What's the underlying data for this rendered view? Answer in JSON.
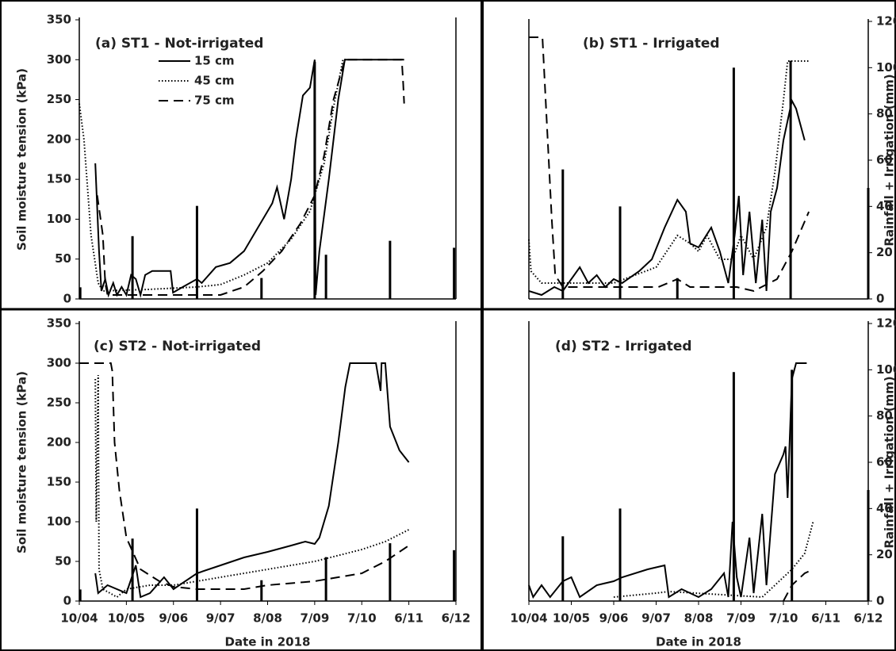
{
  "chart_data": [
    {
      "type": "line",
      "title": "(a) ST1 - Not-irrigated",
      "ylabel": "Soil moisture tension (kPa)",
      "xlim": [
        0,
        8
      ],
      "ylim": [
        0,
        350
      ],
      "yticks": [
        0,
        50,
        100,
        150,
        200,
        250,
        300,
        350
      ],
      "legend": "upper-left",
      "series": [
        {
          "name": "15 cm",
          "color": "#000000",
          "style": "solid",
          "x": [
            0.34,
            0.42,
            0.47,
            0.55,
            0.62,
            0.72,
            0.8,
            0.9,
            1.0,
            1.1,
            1.2,
            1.3,
            1.4,
            1.55,
            1.94,
            1.99,
            2.2,
            2.5,
            2.6,
            2.9,
            3.2,
            3.5,
            3.8,
            4.0,
            4.1,
            4.2,
            4.35,
            4.5,
            4.6,
            4.75,
            4.9,
            5.0,
            5.02,
            5.1,
            5.3,
            5.5,
            5.64,
            6.9
          ],
          "values": [
            170,
            60,
            10,
            25,
            5,
            20,
            5,
            15,
            5,
            30,
            25,
            5,
            30,
            35,
            35,
            8,
            15,
            25,
            20,
            40,
            45,
            60,
            90,
            110,
            120,
            140,
            100,
            150,
            200,
            255,
            265,
            300,
            5,
            60,
            150,
            250,
            300,
            300
          ]
        },
        {
          "name": "45 cm",
          "color": "#000000",
          "style": "dotted",
          "x": [
            0.0,
            0.1,
            0.25,
            0.4,
            0.5,
            1.5,
            2.5,
            3.0,
            3.5,
            4.0,
            4.5,
            4.9,
            5.2,
            5.4,
            5.6,
            5.7
          ],
          "values": [
            245,
            200,
            80,
            20,
            10,
            12,
            15,
            18,
            30,
            45,
            75,
            110,
            170,
            240,
            300,
            300
          ]
        },
        {
          "name": "75 cm",
          "color": "#000000",
          "style": "dashed",
          "x": [
            0.38,
            0.5,
            0.55,
            0.6,
            1.0,
            2.0,
            3.0,
            3.5,
            3.9,
            4.3,
            4.7,
            5.0,
            5.2,
            5.4,
            5.64,
            6.85,
            6.88,
            6.9
          ],
          "values": [
            130,
            80,
            20,
            5,
            5,
            5,
            5,
            15,
            35,
            60,
            95,
            130,
            180,
            250,
            300,
            300,
            270,
            245
          ]
        }
      ],
      "bars": {
        "color": "#000000",
        "axis": "y2",
        "x": [
          0.02,
          1.13,
          2.5,
          3.87,
          5.0,
          5.24,
          6.6,
          7.96
        ],
        "values": [
          5,
          27,
          40,
          9,
          102,
          19,
          25,
          22
        ]
      },
      "y2lim": [
        0,
        120
      ]
    },
    {
      "type": "line",
      "title": "(b) ST1 - Irrigated",
      "y2label": "Rainfall + Irrigation (mm)",
      "xlim": [
        0,
        8
      ],
      "ylim": [
        0,
        350
      ],
      "y2lim": [
        0,
        120
      ],
      "y2ticks": [
        0,
        20,
        40,
        60,
        80,
        100,
        120
      ],
      "series": [
        {
          "name": "15 cm",
          "color": "#000000",
          "style": "solid",
          "x": [
            0.0,
            0.3,
            0.6,
            0.8,
            1.2,
            1.4,
            1.6,
            1.8,
            2.0,
            2.2,
            2.6,
            2.9,
            3.2,
            3.5,
            3.7,
            3.8,
            4.0,
            4.3,
            4.5,
            4.7,
            4.85,
            4.95,
            5.05,
            5.2,
            5.35,
            5.5,
            5.6,
            5.7,
            5.85,
            6.0,
            6.2,
            6.3,
            6.5
          ],
          "values": [
            10,
            5,
            15,
            10,
            40,
            20,
            30,
            15,
            25,
            20,
            35,
            50,
            90,
            125,
            110,
            70,
            65,
            90,
            60,
            20,
            80,
            130,
            30,
            110,
            20,
            100,
            10,
            110,
            140,
            200,
            250,
            240,
            200
          ]
        },
        {
          "name": "45 cm",
          "color": "#000000",
          "style": "dotted",
          "x": [
            0.0,
            0.05,
            0.3,
            1.0,
            2.0,
            3.0,
            3.5,
            3.8,
            4.0,
            4.2,
            4.5,
            4.8,
            5.0,
            5.3,
            5.6,
            5.8,
            6.0,
            6.1,
            6.6
          ],
          "values": [
            75,
            35,
            20,
            20,
            20,
            40,
            80,
            70,
            60,
            80,
            50,
            50,
            80,
            50,
            90,
            160,
            250,
            300,
            300
          ]
        },
        {
          "name": "75 cm",
          "color": "#000000",
          "style": "dashed",
          "x": [
            0.0,
            0.32,
            0.54,
            0.62,
            0.8,
            2.1,
            3.05,
            3.5,
            3.8,
            4.9,
            5.3,
            5.85,
            6.2,
            6.6
          ],
          "values": [
            330,
            330,
            100,
            30,
            15,
            15,
            15,
            25,
            15,
            15,
            10,
            25,
            60,
            110
          ]
        }
      ],
      "bars": {
        "color": "#000000",
        "axis": "y2",
        "x": [
          0.8,
          2.15,
          3.5,
          4.83,
          6.17,
          8.0
        ],
        "values": [
          56,
          40,
          9,
          100,
          103,
          48
        ]
      }
    },
    {
      "type": "line",
      "title": "(c) ST2 - Not-irrigated",
      "ylabel": "Soil moisture tension (kPa)",
      "xlabel": "Date in 2018",
      "xlim": [
        0,
        8
      ],
      "ylim": [
        0,
        350
      ],
      "yticks": [
        0,
        50,
        100,
        150,
        200,
        250,
        300,
        350
      ],
      "xticks": [
        {
          "value": 0,
          "label": "10/04"
        },
        {
          "value": 1,
          "label": "10/05"
        },
        {
          "value": 2,
          "label": "9/06"
        },
        {
          "value": 3,
          "label": "9/07"
        },
        {
          "value": 4,
          "label": "8/08"
        },
        {
          "value": 5,
          "label": "7/09"
        },
        {
          "value": 6,
          "label": "7/10"
        },
        {
          "value": 7,
          "label": "6/11"
        },
        {
          "value": 8,
          "label": "6/12"
        }
      ],
      "series": [
        {
          "name": "15 cm",
          "color": "#000000",
          "style": "solid",
          "x": [
            0.34,
            0.4,
            0.6,
            1.0,
            1.2,
            1.3,
            1.5,
            1.8,
            2.0,
            2.5,
            3.0,
            3.5,
            4.0,
            4.5,
            4.8,
            5.0,
            5.1,
            5.3,
            5.5,
            5.65,
            5.75,
            6.3,
            6.4,
            6.42,
            6.5,
            6.6,
            6.8,
            7.0
          ],
          "values": [
            35,
            10,
            20,
            10,
            45,
            5,
            10,
            30,
            15,
            35,
            45,
            55,
            62,
            70,
            75,
            72,
            80,
            120,
            200,
            270,
            300,
            300,
            265,
            300,
            300,
            220,
            190,
            175
          ]
        },
        {
          "name": "45 cm",
          "color": "#000000",
          "style": "dotted",
          "x": [
            0.34,
            0.36,
            0.4,
            0.42,
            0.5,
            0.8,
            1.0,
            1.5,
            2.0,
            2.5,
            3.0,
            4.0,
            5.0,
            6.0,
            6.5,
            7.0
          ],
          "values": [
            280,
            100,
            285,
            40,
            15,
            5,
            15,
            20,
            20,
            25,
            30,
            40,
            50,
            65,
            75,
            90
          ]
        },
        {
          "name": "75 cm",
          "color": "#000000",
          "style": "dashed",
          "x": [
            0.0,
            0.67,
            0.7,
            0.75,
            0.85,
            1.0,
            1.3,
            1.7,
            2.0,
            2.5,
            3.0,
            3.5,
            4.0,
            5.0,
            6.0,
            6.5,
            7.0
          ],
          "values": [
            300,
            300,
            290,
            200,
            140,
            80,
            40,
            25,
            18,
            15,
            15,
            15,
            20,
            25,
            35,
            50,
            70
          ]
        }
      ],
      "bars": {
        "color": "#000000",
        "axis": "y2",
        "x": [
          0.02,
          1.13,
          2.5,
          3.87,
          5.24,
          6.6,
          7.96
        ],
        "values": [
          5,
          27,
          40,
          9,
          19,
          25,
          22
        ]
      },
      "y2lim": [
        0,
        120
      ]
    },
    {
      "type": "line",
      "title": "(d) ST2 - Irrigated",
      "y2label": "Rainfall + Irrigation (mm)",
      "xlabel": "Date in 2018",
      "xlim": [
        0,
        8
      ],
      "ylim": [
        0,
        350
      ],
      "y2lim": [
        0,
        120
      ],
      "y2ticks": [
        0,
        20,
        40,
        60,
        80,
        100,
        120
      ],
      "xticks": [
        {
          "value": 0,
          "label": "10/04"
        },
        {
          "value": 1,
          "label": "10/05"
        },
        {
          "value": 2,
          "label": "9/06"
        },
        {
          "value": 3,
          "label": "9/07"
        },
        {
          "value": 4,
          "label": "8/08"
        },
        {
          "value": 5,
          "label": "7/09"
        },
        {
          "value": 6,
          "label": "7/10"
        },
        {
          "value": 7,
          "label": "6/11"
        },
        {
          "value": 8,
          "label": "6/12"
        }
      ],
      "series": [
        {
          "name": "15 cm",
          "color": "#000000",
          "style": "solid",
          "x": [
            0.0,
            0.1,
            0.3,
            0.5,
            0.8,
            1.0,
            1.2,
            1.6,
            2.0,
            2.2,
            2.8,
            3.2,
            3.3,
            3.6,
            4.0,
            4.3,
            4.6,
            4.7,
            4.8,
            4.9,
            5.0,
            5.2,
            5.3,
            5.5,
            5.6,
            5.8,
            6.0,
            6.05,
            6.1,
            6.2,
            6.3,
            6.55
          ],
          "values": [
            20,
            5,
            20,
            5,
            25,
            30,
            5,
            20,
            25,
            30,
            40,
            45,
            5,
            15,
            5,
            15,
            35,
            5,
            100,
            30,
            5,
            80,
            10,
            110,
            20,
            160,
            185,
            195,
            130,
            280,
            300,
            300
          ]
        },
        {
          "name": "45 cm",
          "color": "#000000",
          "style": "dotted",
          "x": [
            2.0,
            3.0,
            3.3,
            5.5,
            6.2,
            6.5,
            6.7
          ],
          "values": [
            5,
            10,
            12,
            5,
            40,
            60,
            100
          ]
        },
        {
          "name": "75 cm",
          "color": "#000000",
          "style": "dashed",
          "x": [
            6.0,
            6.2,
            6.5,
            6.7
          ],
          "values": [
            0,
            20,
            35,
            40
          ]
        }
      ],
      "bars": {
        "color": "#000000",
        "axis": "y2",
        "x": [
          0.8,
          2.15,
          4.83,
          6.2,
          8.0
        ],
        "values": [
          28,
          40,
          99,
          100,
          48
        ]
      }
    }
  ]
}
